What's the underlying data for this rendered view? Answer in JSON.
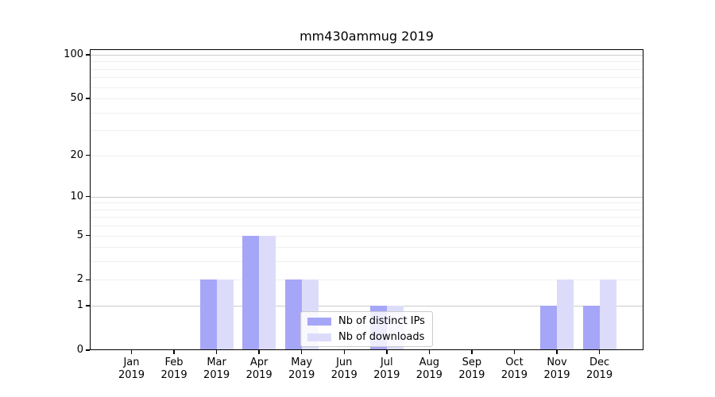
{
  "chart_data": {
    "type": "bar",
    "title": "mm430ammug 2019",
    "categories": [
      "Jan 2019",
      "Feb 2019",
      "Mar 2019",
      "Apr 2019",
      "May 2019",
      "Jun 2019",
      "Jul 2019",
      "Aug 2019",
      "Sep 2019",
      "Oct 2019",
      "Nov 2019",
      "Dec 2019"
    ],
    "category_month_labels": [
      "Jan",
      "Feb",
      "Mar",
      "Apr",
      "May",
      "Jun",
      "Jul",
      "Aug",
      "Sep",
      "Oct",
      "Nov",
      "Dec"
    ],
    "category_year_label": "2019",
    "series": [
      {
        "name": "Nb of distinct IPs",
        "color": "#a6a6f8",
        "values": [
          0,
          0,
          2,
          5,
          2,
          0,
          1,
          0,
          0,
          0,
          1,
          1
        ]
      },
      {
        "name": "Nb of downloads",
        "color": "#dcdcfa",
        "values": [
          0,
          0,
          2,
          5,
          2,
          0,
          1,
          0,
          0,
          0,
          2,
          2
        ]
      }
    ],
    "yscale": "log1p",
    "ylim": [
      0,
      110
    ],
    "yticks_labeled": [
      0,
      1,
      2,
      5,
      10,
      20,
      50,
      100
    ],
    "ygrid_major_values": [
      1,
      10,
      100
    ],
    "ygrid_minor_values": [
      2,
      3,
      4,
      5,
      6,
      7,
      8,
      9,
      20,
      30,
      40,
      50,
      60,
      70,
      80,
      90
    ],
    "grid": "horizontal",
    "legend_position": "lower center",
    "colors": {
      "grid_major": "#cbcbcb",
      "grid_minor": "#f0f0f0",
      "spine": "#000000",
      "background": "#ffffff"
    }
  }
}
